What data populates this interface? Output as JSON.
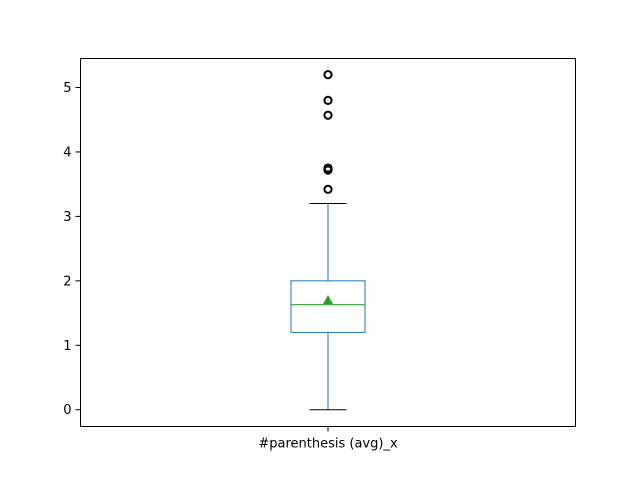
{
  "chart_data": {
    "type": "box",
    "categories": [
      "#parenthesis (avg)_x"
    ],
    "ylim": [
      -0.26,
      5.45
    ],
    "y_ticks": [
      0,
      1,
      2,
      3,
      4,
      5
    ],
    "grid": false,
    "boxes": [
      {
        "name": "#parenthesis (avg)_x",
        "whisker_low": 0,
        "q1": 1.2,
        "median": 1.63,
        "mean": 1.7,
        "q3": 2.0,
        "whisker_high": 3.2,
        "outliers": [
          3.42,
          3.72,
          3.75,
          4.57,
          4.8,
          5.2
        ]
      }
    ],
    "colors": {
      "box": "#1f77b4",
      "median": "#2ca02c",
      "mean_marker": "#2ca02c",
      "whisker_cap": "#000000",
      "outlier": "#000000"
    }
  }
}
